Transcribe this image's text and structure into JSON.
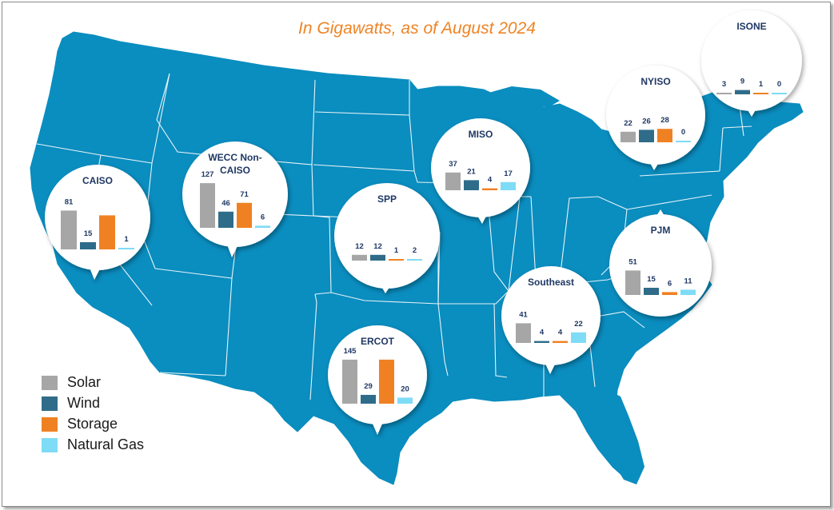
{
  "subtitle": "In Gigawatts, as of August 2024",
  "colors": {
    "land": "#0a8dbf",
    "border": "#ffffff",
    "solar": "#a6a6a6",
    "wind": "#2f6c8a",
    "storage": "#f08122",
    "natural_gas": "#7fdcf6",
    "label": "#1f3864",
    "subtitle": "#ef8424"
  },
  "legend": [
    {
      "label": "Solar",
      "color": "#a6a6a6"
    },
    {
      "label": "Wind",
      "color": "#2f6c8a"
    },
    {
      "label": "Storage",
      "color": "#f08122"
    },
    {
      "label": "Natural Gas",
      "color": "#7fdcf6"
    }
  ],
  "chart_data": {
    "type": "bar",
    "title": "In Gigawatts, as of August 2024",
    "categories": [
      "Solar",
      "Wind",
      "Storage",
      "Natural Gas"
    ],
    "unit": "GW",
    "regions": [
      {
        "name": "CAISO",
        "values": [
          81,
          15,
          71,
          1
        ]
      },
      {
        "name": "WECC Non-CAISO",
        "values": [
          127,
          46,
          71,
          6
        ]
      },
      {
        "name": "SPP",
        "values": [
          12,
          12,
          1,
          2
        ]
      },
      {
        "name": "ERCOT",
        "values": [
          145,
          29,
          145,
          20
        ]
      },
      {
        "name": "MISO",
        "values": [
          37,
          21,
          4,
          17
        ]
      },
      {
        "name": "Southeast",
        "values": [
          41,
          4,
          4,
          22
        ]
      },
      {
        "name": "PJM",
        "values": [
          51,
          15,
          6,
          11
        ]
      },
      {
        "name": "NYISO",
        "values": [
          22,
          26,
          28,
          0
        ]
      },
      {
        "name": "ISONE",
        "values": [
          3,
          9,
          1,
          0
        ]
      }
    ],
    "bar_labels": [
      {
        "region": "CAISO",
        "labels": [
          "81",
          "15",
          "",
          "1"
        ]
      },
      {
        "region": "WECC Non-CAISO",
        "labels": [
          "127",
          "46",
          "71",
          "6"
        ]
      },
      {
        "region": "SPP",
        "labels": [
          "12",
          "12",
          "1",
          "2"
        ]
      },
      {
        "region": "ERCOT",
        "labels": [
          "145",
          "29",
          "",
          "20"
        ]
      },
      {
        "region": "MISO",
        "labels": [
          "37",
          "21",
          "4",
          "17"
        ]
      },
      {
        "region": "Southeast",
        "labels": [
          "41",
          "4",
          "4",
          "22"
        ]
      },
      {
        "region": "PJM",
        "labels": [
          "51",
          "15",
          "6",
          "11"
        ]
      },
      {
        "region": "NYISO",
        "labels": [
          "22",
          "26",
          "28",
          "0"
        ]
      },
      {
        "region": "ISONE",
        "labels": [
          "3",
          "9",
          "1",
          "0"
        ]
      }
    ]
  }
}
